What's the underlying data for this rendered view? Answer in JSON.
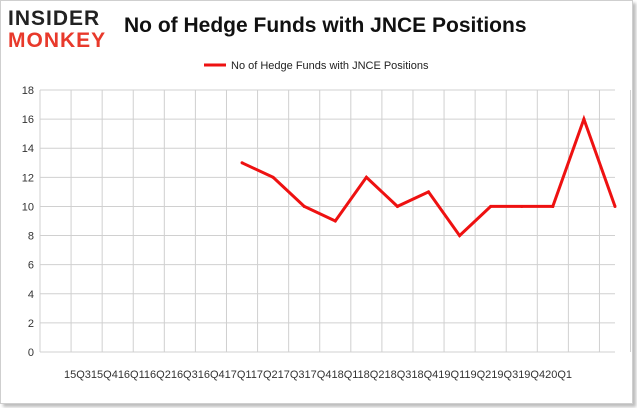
{
  "logo": {
    "line1": "INSIDER",
    "line2": "MONKEY"
  },
  "chart_data": {
    "type": "line",
    "title": "No of Hedge Funds with JNCE Positions",
    "xlabel": "",
    "ylabel": "",
    "ylim": [
      0,
      18
    ],
    "yticks": [
      0,
      2,
      4,
      6,
      8,
      10,
      12,
      14,
      16,
      18
    ],
    "categories": [
      "2015Q3",
      "2015Q4",
      "2016Q1",
      "2016Q2",
      "2016Q3",
      "2016Q4",
      "2017Q1",
      "2017Q2",
      "2017Q3",
      "2017Q4",
      "2018Q1",
      "2018Q2",
      "2018Q3",
      "2018Q4",
      "2019Q1",
      "2019Q2",
      "2019Q3",
      "2019Q4",
      "2020Q1"
    ],
    "x_axis_text": "15Q315Q416Q116Q216Q316Q417Q117Q217Q317Q418Q118Q218Q318Q419Q119Q219Q319Q420Q1",
    "series": [
      {
        "name": "No of Hedge Funds with JNCE  Positions",
        "color": "#ee1111",
        "values": [
          null,
          null,
          null,
          null,
          null,
          null,
          13,
          12,
          10,
          9,
          12,
          10,
          11,
          8,
          10,
          10,
          10,
          16,
          10
        ]
      }
    ],
    "legend": "top-center",
    "grid": true,
    "grid_color": "#d0d0d0"
  }
}
